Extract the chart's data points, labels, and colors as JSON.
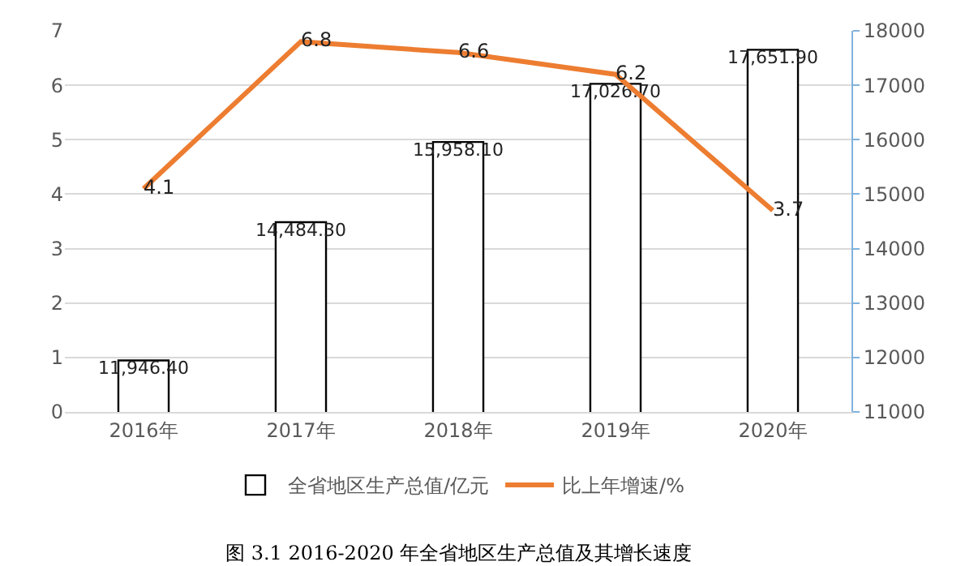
{
  "chart_data": {
    "type": "bar",
    "title": "图 3.1 2016-2020 年全省地区生产总值及其增长速度",
    "categories": [
      "2016年",
      "2017年",
      "2018年",
      "2019年",
      "2020年"
    ],
    "series": [
      {
        "name": "全省地区生产总值/亿元",
        "axis": "y2",
        "color": "#ffffff",
        "values": [
          11946.4,
          14484.3,
          15958.1,
          17026.7,
          17651.9
        ],
        "value_labels": [
          "11,946.40",
          "14,484.30",
          "15,958.10",
          "17,026.70",
          "17,651.90"
        ]
      },
      {
        "name": "比上年增速/%",
        "type": "line",
        "axis": "y",
        "color": "#ed7d31",
        "values": [
          4.1,
          6.8,
          6.6,
          6.2,
          3.7
        ],
        "value_labels": [
          "4.1",
          "6.8",
          "6.6",
          "6.2",
          "3.7"
        ]
      }
    ],
    "ylim": [
      0,
      7
    ],
    "yticks": [
      0,
      1,
      2,
      3,
      4,
      5,
      6,
      7
    ],
    "y2lim": [
      11000,
      18000
    ],
    "y2ticks": [
      11000,
      12000,
      13000,
      14000,
      15000,
      16000,
      17000,
      18000
    ],
    "grid": "y",
    "legend": "bottom",
    "marker": "none",
    "line_style": "solid"
  }
}
